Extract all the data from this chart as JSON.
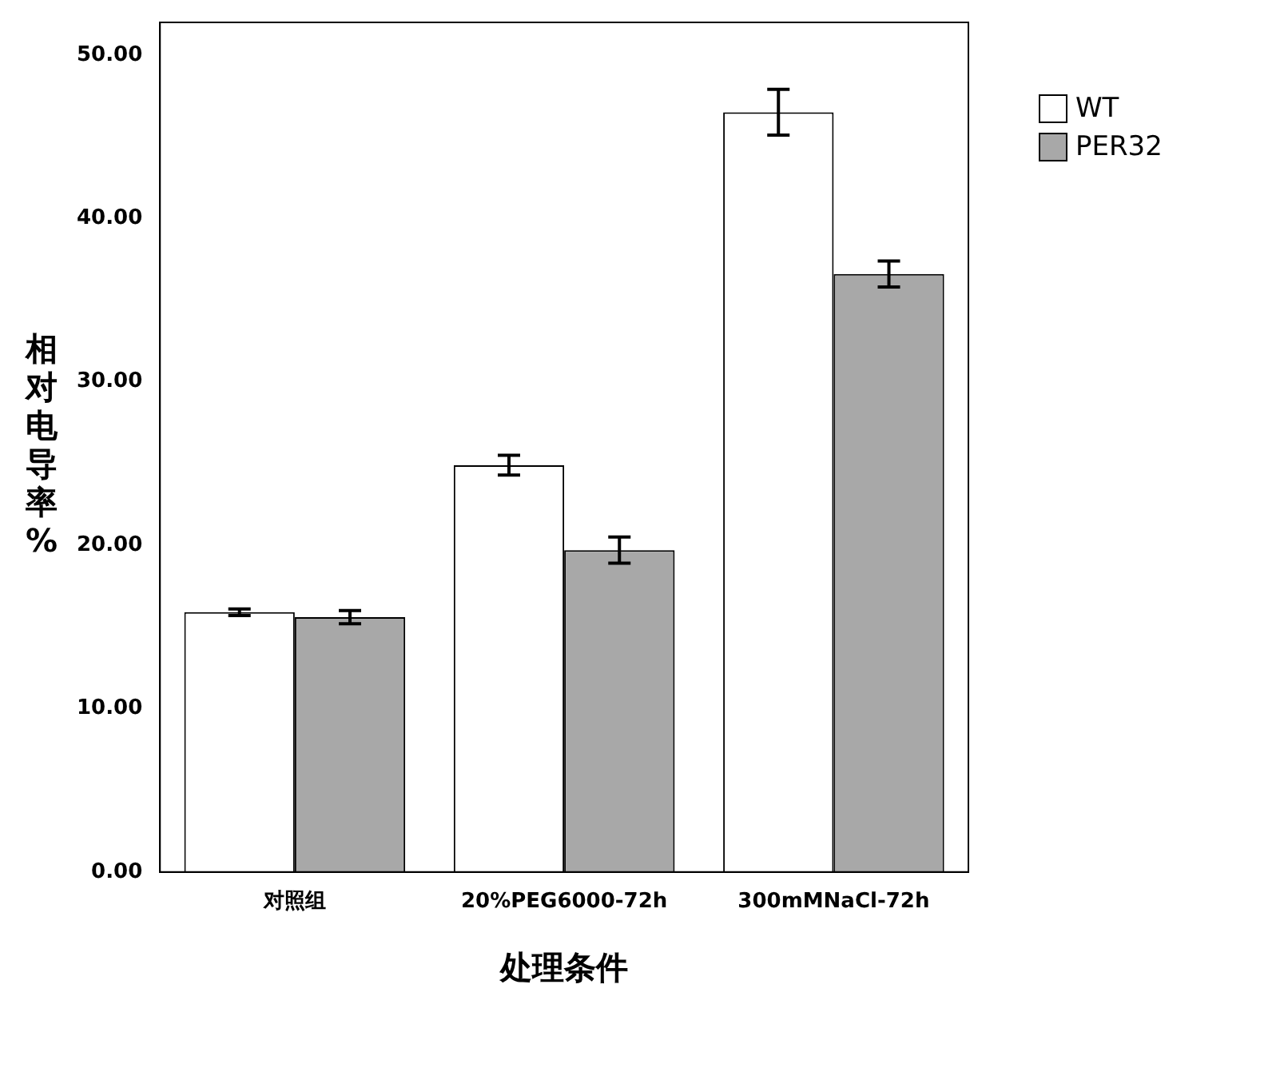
{
  "chart_data": {
    "type": "bar",
    "xlabel": "处理条件",
    "ylabel": "相对电导率%",
    "categories": [
      "对照组",
      "20%PEG6000-72h",
      "300mMNaCl-72h"
    ],
    "series": [
      {
        "name": "WT",
        "color": "#ffffff",
        "values": [
          15.9,
          24.9,
          46.5
        ],
        "errors": [
          0.2,
          0.6,
          1.4
        ]
      },
      {
        "name": "PER32",
        "color": "#a8a8a8",
        "values": [
          15.6,
          19.7,
          36.6
        ],
        "errors": [
          0.4,
          0.8,
          0.8
        ]
      }
    ],
    "ylim": [
      0,
      52
    ],
    "yticks": [
      {
        "value": 0,
        "label": "0.00"
      },
      {
        "value": 10,
        "label": "10.00"
      },
      {
        "value": 20,
        "label": "20.00"
      },
      {
        "value": 30,
        "label": "30.00"
      },
      {
        "value": 40,
        "label": "40.00"
      },
      {
        "value": 50,
        "label": "50.00"
      }
    ],
    "grid": false,
    "legend": "top right"
  }
}
